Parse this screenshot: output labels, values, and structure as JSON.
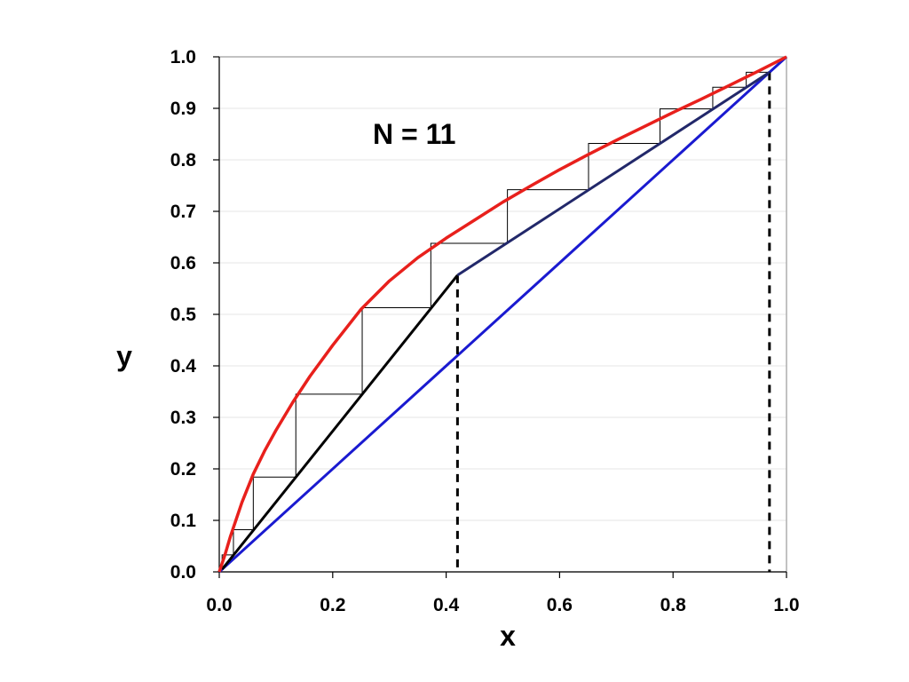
{
  "chart_data": {
    "type": "line",
    "title": "",
    "xlabel": "x",
    "ylabel": "y",
    "xlim": [
      0,
      1
    ],
    "ylim": [
      0,
      1
    ],
    "xticks": [
      "0.0",
      "0.2",
      "0.4",
      "0.6",
      "0.8",
      "1.0"
    ],
    "yticks": [
      "0.0",
      "0.1",
      "0.2",
      "0.3",
      "0.4",
      "0.5",
      "0.6",
      "0.7",
      "0.8",
      "0.9",
      "1.0"
    ],
    "grid": "horizontal",
    "annotation": "N = 11",
    "colors": {
      "equilibrium": "#e8201c",
      "diagonal": "#1a1ad0",
      "stripping": "#000000",
      "rectifying": "#22286a",
      "stages": "#000000",
      "markers": "#000000"
    },
    "series": [
      {
        "id": "equilibrium",
        "x": [
          0,
          0.01,
          0.02,
          0.04,
          0.06,
          0.08,
          0.1,
          0.13,
          0.16,
          0.2,
          0.25,
          0.3,
          0.35,
          0.4,
          0.45,
          0.5,
          0.55,
          0.6,
          0.65,
          0.7,
          0.75,
          0.8,
          0.85,
          0.9,
          0.95,
          1.0
        ],
        "y": [
          0,
          0.033,
          0.07,
          0.135,
          0.19,
          0.235,
          0.275,
          0.33,
          0.38,
          0.44,
          0.51,
          0.565,
          0.61,
          0.648,
          0.683,
          0.718,
          0.75,
          0.781,
          0.81,
          0.838,
          0.865,
          0.892,
          0.918,
          0.945,
          0.972,
          1.0
        ]
      },
      {
        "id": "diagonal",
        "x": [
          0,
          1.0
        ],
        "y": [
          0,
          1.0
        ]
      },
      {
        "id": "stripping",
        "x": [
          0.005,
          0.42
        ],
        "y": [
          0.005,
          0.576
        ]
      },
      {
        "id": "rectifying",
        "x": [
          0.42,
          0.97
        ],
        "y": [
          0.576,
          0.97
        ]
      }
    ],
    "stages": [
      [
        0.005,
        0.005
      ],
      [
        0.005,
        0.033
      ],
      [
        0.025,
        0.033
      ],
      [
        0.025,
        0.082
      ],
      [
        0.06,
        0.082
      ],
      [
        0.06,
        0.184
      ],
      [
        0.135,
        0.184
      ],
      [
        0.135,
        0.345
      ],
      [
        0.252,
        0.345
      ],
      [
        0.252,
        0.513
      ],
      [
        0.373,
        0.513
      ],
      [
        0.373,
        0.638
      ],
      [
        0.508,
        0.638
      ],
      [
        0.508,
        0.742
      ],
      [
        0.651,
        0.742
      ],
      [
        0.651,
        0.832
      ],
      [
        0.777,
        0.832
      ],
      [
        0.777,
        0.899
      ],
      [
        0.87,
        0.899
      ],
      [
        0.87,
        0.941
      ],
      [
        0.929,
        0.941
      ],
      [
        0.929,
        0.97
      ],
      [
        0.97,
        0.97
      ]
    ],
    "vertical_markers": [
      {
        "x": 0.42,
        "y_top": 0.576
      },
      {
        "x": 0.97,
        "y_top": 0.97
      }
    ]
  }
}
